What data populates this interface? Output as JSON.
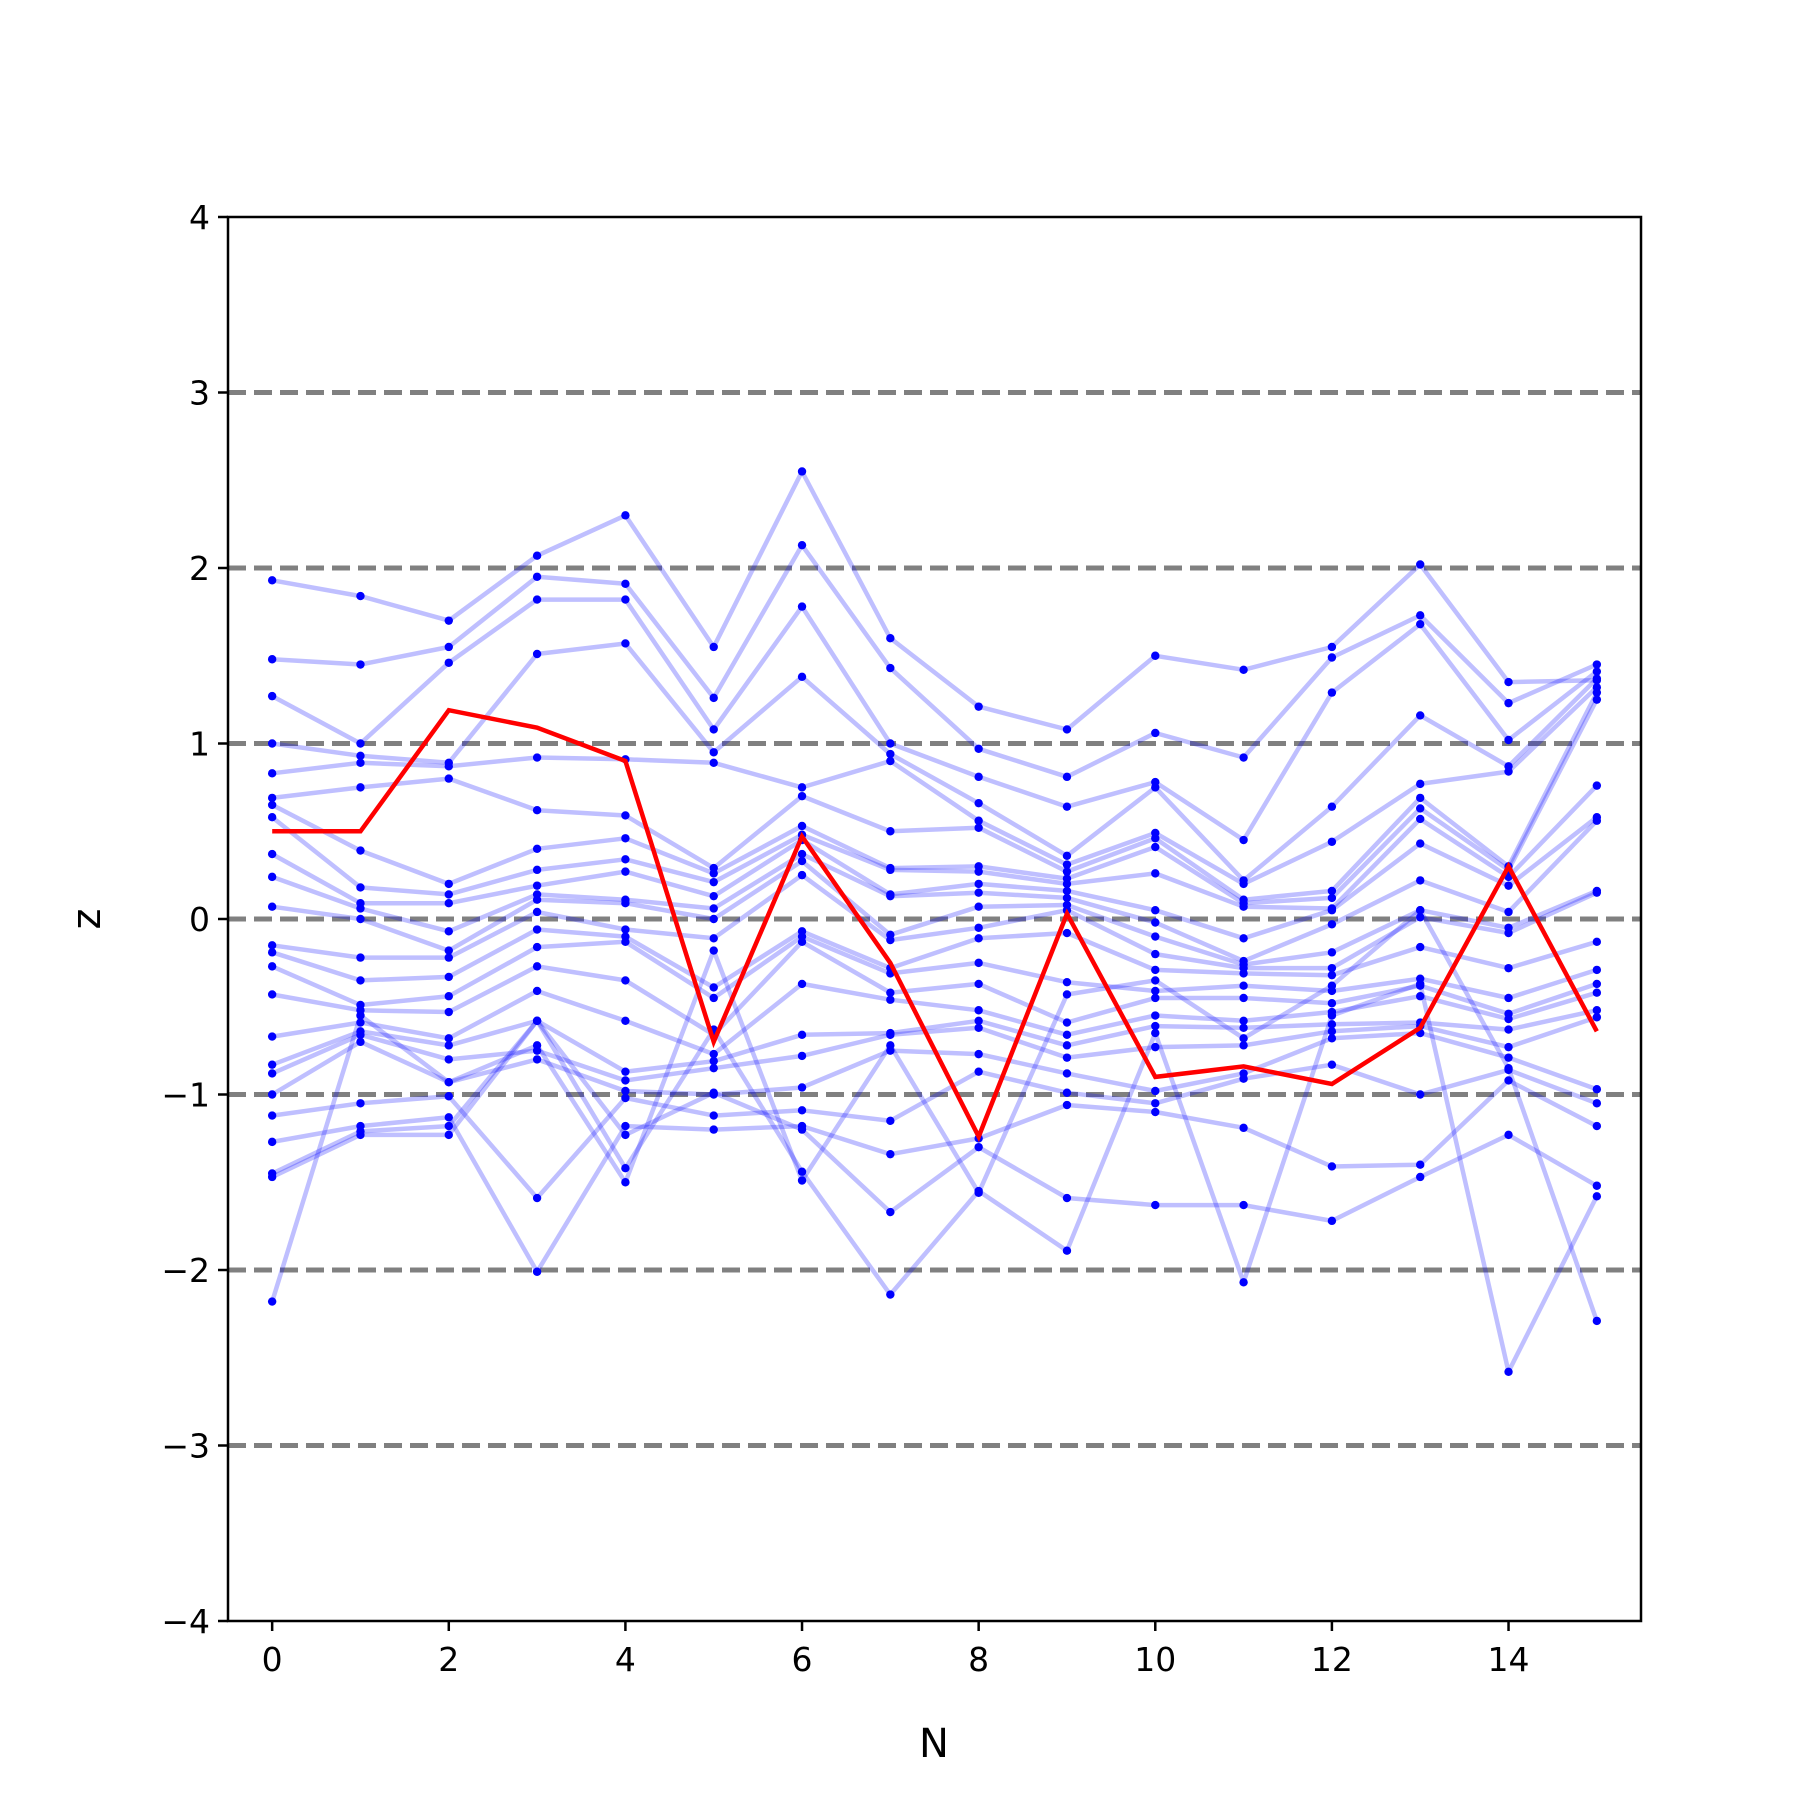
{
  "chart_data": {
    "type": "line",
    "xlabel": "N",
    "ylabel": "z",
    "xlim": [
      -0.5,
      15.5
    ],
    "ylim": [
      -4,
      4
    ],
    "x_ticks": [
      0,
      2,
      4,
      6,
      8,
      10,
      12,
      14
    ],
    "x_tick_labels": [
      "0",
      "2",
      "4",
      "6",
      "8",
      "10",
      "12",
      "14"
    ],
    "y_ticks": [
      -4,
      -3,
      -2,
      -1,
      0,
      1,
      2,
      3,
      4
    ],
    "y_tick_labels": [
      "−4",
      "−3",
      "−2",
      "−1",
      "0",
      "1",
      "2",
      "3",
      "4"
    ],
    "reference_lines": {
      "y": [
        -3,
        -2,
        -1,
        0,
        1,
        2,
        3
      ],
      "style": "dashed",
      "color": "#808080"
    },
    "x": [
      0,
      1,
      2,
      3,
      4,
      5,
      6,
      7,
      8,
      9,
      10,
      11,
      12,
      13,
      14,
      15
    ],
    "highlight_series": {
      "color": "#ff0000",
      "values": [
        0.5,
        0.5,
        1.19,
        1.09,
        0.9,
        -0.7,
        0.47,
        -0.25,
        -1.24,
        0.03,
        -0.9,
        -0.84,
        -0.94,
        -0.62,
        0.3,
        -0.64
      ]
    },
    "background_series_color": "#0000ff",
    "background_series": [
      {
        "values": [
          1.93,
          1.84,
          1.7,
          2.07,
          2.3,
          1.55,
          2.55,
          1.6,
          1.21,
          1.08,
          1.5,
          1.42,
          1.55,
          2.02,
          1.35,
          1.36
        ]
      },
      {
        "values": [
          1.48,
          1.45,
          1.55,
          1.95,
          1.91,
          1.26,
          2.13,
          1.43,
          0.97,
          0.81,
          1.06,
          0.92,
          1.49,
          1.73,
          1.23,
          1.45
        ]
      },
      {
        "values": [
          1.27,
          1.0,
          1.46,
          1.82,
          1.82,
          1.08,
          1.78,
          1.0,
          0.81,
          0.64,
          0.78,
          0.45,
          1.29,
          1.68,
          1.02,
          1.41
        ]
      },
      {
        "values": [
          1.0,
          0.93,
          0.89,
          1.51,
          1.57,
          0.95,
          1.38,
          0.94,
          0.66,
          0.36,
          0.75,
          0.22,
          0.64,
          1.16,
          0.87,
          1.37
        ]
      },
      {
        "values": [
          0.83,
          0.89,
          0.87,
          0.92,
          0.91,
          0.89,
          0.75,
          0.9,
          0.56,
          0.31,
          0.49,
          0.2,
          0.44,
          0.77,
          0.84,
          1.32
        ]
      },
      {
        "values": [
          0.69,
          0.75,
          0.8,
          0.62,
          0.59,
          0.29,
          0.7,
          0.5,
          0.52,
          0.27,
          0.46,
          0.11,
          0.16,
          0.69,
          0.3,
          1.29
        ]
      },
      {
        "values": [
          0.65,
          0.39,
          0.2,
          0.4,
          0.46,
          0.26,
          0.53,
          0.29,
          0.3,
          0.23,
          0.41,
          0.09,
          0.12,
          0.63,
          0.28,
          1.25
        ]
      },
      {
        "values": [
          0.58,
          0.18,
          0.14,
          0.28,
          0.34,
          0.21,
          0.48,
          0.28,
          0.27,
          0.2,
          0.26,
          0.07,
          0.06,
          0.57,
          0.24,
          0.76
        ]
      },
      {
        "values": [
          0.37,
          0.09,
          0.09,
          0.19,
          0.27,
          0.13,
          0.45,
          0.14,
          0.2,
          0.16,
          0.05,
          -0.11,
          0.05,
          0.43,
          0.19,
          0.58
        ]
      },
      {
        "values": [
          0.24,
          0.06,
          -0.07,
          0.14,
          0.11,
          0.06,
          0.37,
          0.13,
          0.15,
          0.12,
          -0.02,
          -0.24,
          -0.03,
          0.22,
          0.04,
          0.56
        ]
      },
      {
        "values": [
          0.07,
          0.0,
          -0.18,
          0.11,
          0.09,
          0.0,
          0.33,
          -0.09,
          0.07,
          0.08,
          -0.1,
          -0.26,
          -0.19,
          0.05,
          -0.05,
          0.16
        ]
      },
      {
        "values": [
          -0.15,
          -0.22,
          -0.22,
          0.04,
          -0.06,
          -0.11,
          0.25,
          -0.12,
          -0.05,
          0.05,
          -0.2,
          -0.28,
          -0.28,
          0.01,
          -0.08,
          0.15
        ]
      },
      {
        "values": [
          -0.19,
          -0.35,
          -0.33,
          -0.06,
          -0.1,
          -0.39,
          -0.07,
          -0.28,
          -0.11,
          -0.08,
          -0.29,
          -0.31,
          -0.32,
          -0.16,
          -0.28,
          -0.13
        ]
      },
      {
        "values": [
          -0.27,
          -0.49,
          -0.44,
          -0.16,
          -0.13,
          -0.45,
          -0.1,
          -0.31,
          -0.25,
          -0.36,
          -0.41,
          -0.38,
          -0.41,
          -0.34,
          -0.45,
          -0.29
        ]
      },
      {
        "values": [
          -0.43,
          -0.52,
          -0.53,
          -0.27,
          -0.35,
          -0.66,
          -0.13,
          -0.42,
          -0.37,
          -0.59,
          -0.45,
          -0.45,
          -0.48,
          -0.38,
          -0.54,
          -0.37
        ]
      },
      {
        "values": [
          -0.67,
          -0.59,
          -0.68,
          -0.41,
          -0.58,
          -0.77,
          -0.37,
          -0.46,
          -0.52,
          -0.66,
          -0.55,
          -0.58,
          -0.53,
          -0.44,
          -0.57,
          -0.42
        ]
      },
      {
        "values": [
          -0.83,
          -0.64,
          -0.72,
          -0.58,
          -0.87,
          -0.81,
          -0.66,
          -0.65,
          -0.58,
          -0.72,
          -0.61,
          -0.62,
          -0.6,
          -0.59,
          -0.63,
          -0.52
        ]
      },
      {
        "values": [
          -0.88,
          -0.66,
          -0.8,
          -0.75,
          -0.92,
          -0.85,
          -0.78,
          -0.66,
          -0.62,
          -0.79,
          -0.73,
          -0.72,
          -0.64,
          -0.61,
          -0.73,
          -0.56
        ]
      },
      {
        "values": [
          -1.0,
          -0.7,
          -0.93,
          -0.8,
          -0.98,
          -1.0,
          -0.96,
          -0.75,
          -0.77,
          -0.88,
          -0.98,
          -0.88,
          -0.68,
          -0.65,
          -0.79,
          -0.97
        ]
      },
      {
        "values": [
          -1.12,
          -1.05,
          -1.01,
          -1.59,
          -1.02,
          -1.12,
          -1.09,
          -1.15,
          -0.87,
          -0.99,
          -1.05,
          -0.91,
          -0.83,
          -1.0,
          -0.86,
          -1.05
        ]
      },
      {
        "values": [
          -1.27,
          -1.18,
          -1.13,
          -2.01,
          -1.18,
          -1.2,
          -1.18,
          -1.34,
          -1.25,
          -1.06,
          -1.1,
          -1.19,
          -1.41,
          -1.4,
          -0.92,
          -1.18
        ]
      },
      {
        "values": [
          -1.45,
          -1.21,
          -1.18,
          -0.58,
          -1.23,
          -0.99,
          -1.2,
          -1.67,
          -1.3,
          -1.59,
          -1.63,
          -1.63,
          -1.72,
          -1.47,
          -1.23,
          -1.52
        ]
      },
      {
        "values": [
          -1.47,
          -1.23,
          -1.23,
          -0.58,
          -1.42,
          -0.63,
          -1.44,
          -2.14,
          -1.55,
          -1.89,
          -0.65,
          -2.07,
          -0.55,
          -0.37,
          -2.58,
          -1.58
        ]
      },
      {
        "values": [
          -2.18,
          -0.55,
          -0.93,
          -0.72,
          -1.5,
          -0.18,
          -1.49,
          -0.72,
          -1.56,
          -0.43,
          -0.35,
          -0.68,
          -0.38,
          0.05,
          -0.85,
          -2.29
        ]
      }
    ]
  }
}
